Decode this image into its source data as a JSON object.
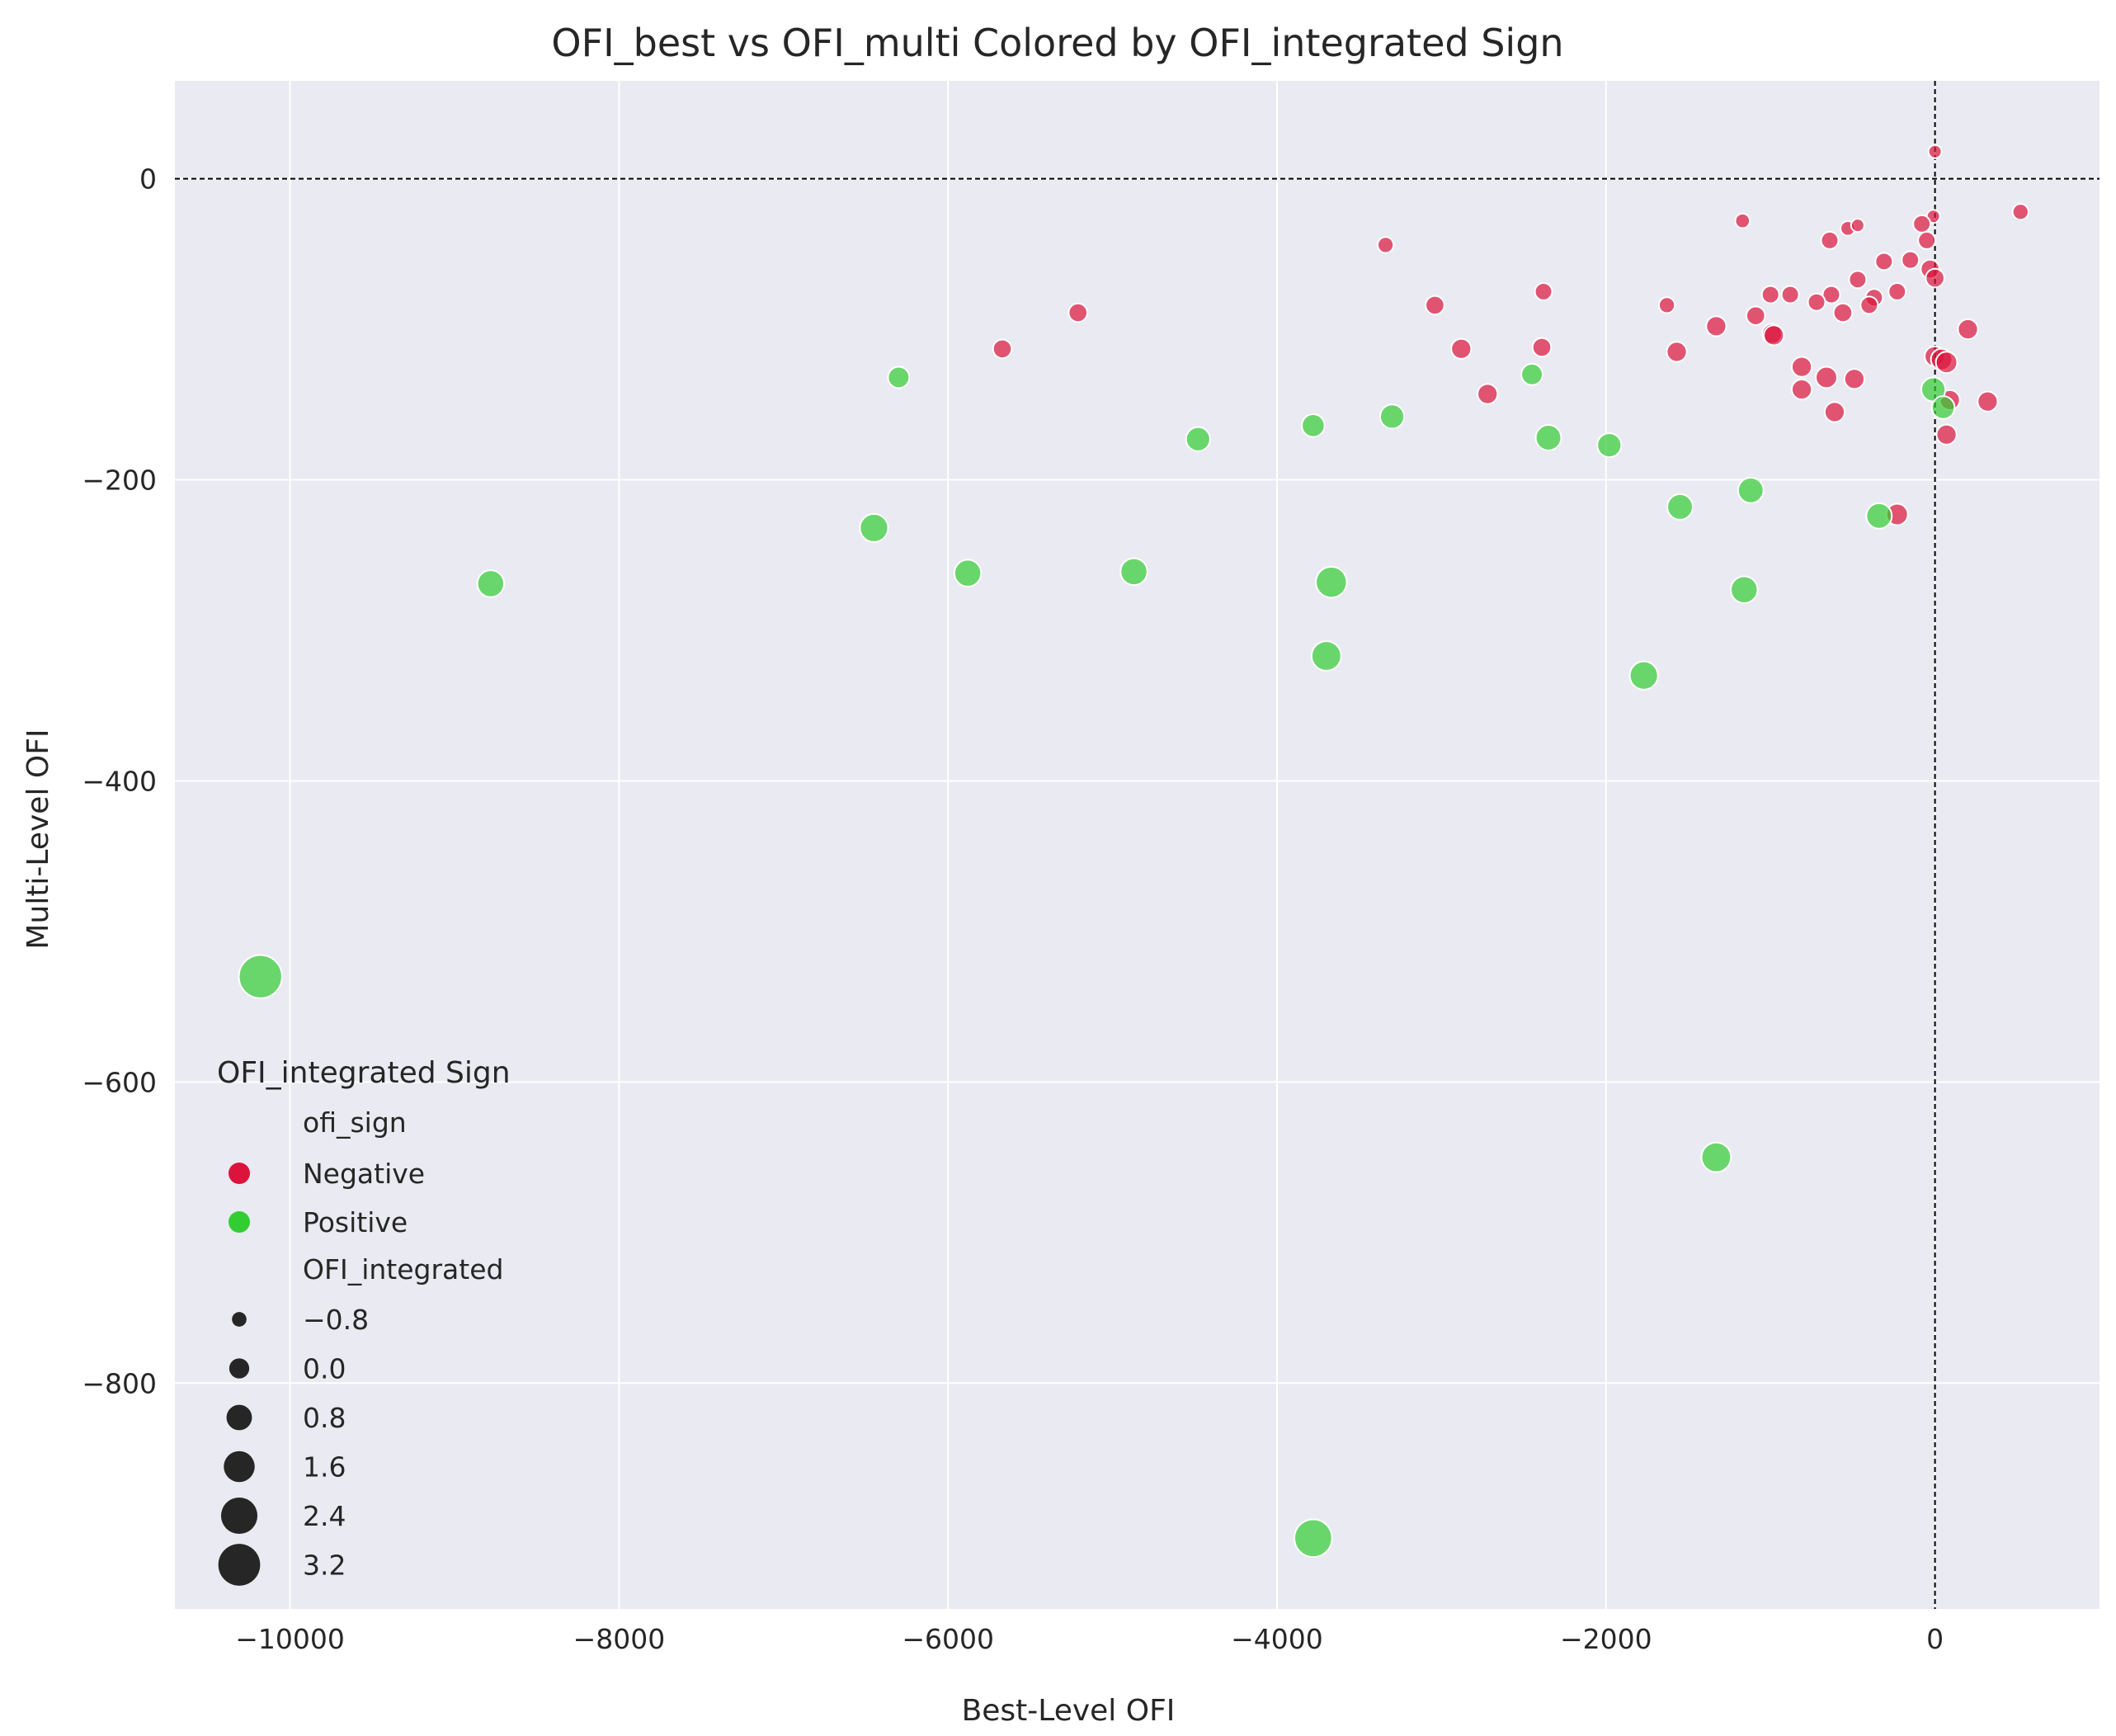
{
  "chart_data": {
    "type": "scatter",
    "title": "OFI_best vs OFI_multi Colored by OFI_integrated Sign",
    "xlabel": "Best-Level OFI",
    "ylabel": "Multi-Level OFI",
    "xlim": [
      -10700,
      1000
    ],
    "ylim": [
      -950,
      65
    ],
    "xticks": [
      -10000,
      -8000,
      -6000,
      -4000,
      -2000,
      0
    ],
    "yticks": [
      0,
      -200,
      -400,
      -600,
      -800
    ],
    "x_tick_labels": [
      "−10000",
      "−8000",
      "−6000",
      "−4000",
      "−2000",
      "0"
    ],
    "y_tick_labels": [
      "0",
      "−200",
      "−400",
      "−600",
      "−800"
    ],
    "grid": true,
    "reference_lines": {
      "x": 0,
      "y": 0,
      "style": "dashed",
      "color": "#000000"
    },
    "colors": {
      "Negative": "#dc143c",
      "Positive": "#32cd32",
      "background": "#eaeaf2",
      "grid": "#ffffff"
    },
    "legend": {
      "title": "OFI_integrated Sign",
      "placement": "lower-left",
      "hue_title": "ofi_sign",
      "hue_entries": [
        {
          "label": "Negative",
          "color": "#dc143c"
        },
        {
          "label": "Positive",
          "color": "#32cd32"
        }
      ],
      "size_title": "OFI_integrated",
      "size_entries": [
        {
          "label": "−0.8",
          "value": -0.8
        },
        {
          "label": "0.0",
          "value": 0.0
        },
        {
          "label": "0.8",
          "value": 0.8
        },
        {
          "label": "1.6",
          "value": 1.6
        },
        {
          "label": "2.4",
          "value": 2.4
        },
        {
          "label": "3.2",
          "value": 3.2
        }
      ]
    },
    "size_range": {
      "min_value": -1.0,
      "max_value": 3.6,
      "min_radius": 8,
      "max_radius": 27
    },
    "series": [
      {
        "name": "Negative",
        "points": [
          {
            "x": 0,
            "y": 18,
            "size": -1.2
          },
          {
            "x": 520,
            "y": -22,
            "size": -0.6
          },
          {
            "x": -1170,
            "y": -28,
            "size": -0.8
          },
          {
            "x": -530,
            "y": -33,
            "size": -0.8
          },
          {
            "x": -470,
            "y": -31,
            "size": -1.0
          },
          {
            "x": -10,
            "y": -25,
            "size": -1.0
          },
          {
            "x": -80,
            "y": -30,
            "size": -0.4
          },
          {
            "x": -3340,
            "y": -44,
            "size": -0.6
          },
          {
            "x": -640,
            "y": -41,
            "size": -0.4
          },
          {
            "x": -50,
            "y": -41,
            "size": -0.4
          },
          {
            "x": -310,
            "y": -55,
            "size": -0.4
          },
          {
            "x": -150,
            "y": -54,
            "size": -0.4
          },
          {
            "x": -30,
            "y": -60,
            "size": -0.2
          },
          {
            "x": 0,
            "y": -66,
            "size": -0.2
          },
          {
            "x": -470,
            "y": -67,
            "size": -0.4
          },
          {
            "x": -2380,
            "y": -75,
            "size": -0.4
          },
          {
            "x": -1000,
            "y": -77,
            "size": -0.4
          },
          {
            "x": -880,
            "y": -77,
            "size": -0.4
          },
          {
            "x": -630,
            "y": -77,
            "size": -0.4
          },
          {
            "x": -370,
            "y": -79,
            "size": -0.4
          },
          {
            "x": -230,
            "y": -75,
            "size": -0.4
          },
          {
            "x": -1630,
            "y": -84,
            "size": -0.6
          },
          {
            "x": -3040,
            "y": -84,
            "size": -0.2
          },
          {
            "x": -720,
            "y": -82,
            "size": -0.4
          },
          {
            "x": -400,
            "y": -84,
            "size": -0.4
          },
          {
            "x": -5210,
            "y": -89,
            "size": -0.2
          },
          {
            "x": -1090,
            "y": -91,
            "size": -0.2
          },
          {
            "x": -560,
            "y": -89,
            "size": -0.2
          },
          {
            "x": -1330,
            "y": -98,
            "size": 0.0
          },
          {
            "x": -990,
            "y": -103,
            "size": 0.0
          },
          {
            "x": -980,
            "y": -104,
            "size": 0.0
          },
          {
            "x": 200,
            "y": -100,
            "size": 0.0
          },
          {
            "x": -5670,
            "y": -113,
            "size": -0.2
          },
          {
            "x": -2880,
            "y": -113,
            "size": 0.0
          },
          {
            "x": -2390,
            "y": -112,
            "size": -0.2
          },
          {
            "x": -1570,
            "y": -115,
            "size": 0.0
          },
          {
            "x": -2,
            "y": -118,
            "size": 0.0
          },
          {
            "x": 40,
            "y": -120,
            "size": 0.2
          },
          {
            "x": 70,
            "y": -122,
            "size": 0.2
          },
          {
            "x": -810,
            "y": -125,
            "size": 0.0
          },
          {
            "x": -660,
            "y": -132,
            "size": 0.2
          },
          {
            "x": -490,
            "y": -133,
            "size": 0.0
          },
          {
            "x": -810,
            "y": -140,
            "size": 0.0
          },
          {
            "x": -2720,
            "y": -143,
            "size": 0.0
          },
          {
            "x": 90,
            "y": -147,
            "size": 0.0
          },
          {
            "x": 320,
            "y": -148,
            "size": 0.0
          },
          {
            "x": -610,
            "y": -155,
            "size": 0.0
          },
          {
            "x": 70,
            "y": -170,
            "size": 0.0
          },
          {
            "x": -230,
            "y": -223,
            "size": 0.2
          }
        ]
      },
      {
        "name": "Positive",
        "points": [
          {
            "x": -6300,
            "y": -132,
            "size": 0.2
          },
          {
            "x": -2450,
            "y": -130,
            "size": 0.2
          },
          {
            "x": -10,
            "y": -140,
            "size": 0.6
          },
          {
            "x": 50,
            "y": -152,
            "size": 0.4
          },
          {
            "x": -3300,
            "y": -158,
            "size": 0.6
          },
          {
            "x": -3780,
            "y": -164,
            "size": 0.4
          },
          {
            "x": -4480,
            "y": -173,
            "size": 0.6
          },
          {
            "x": -2350,
            "y": -172,
            "size": 0.8
          },
          {
            "x": -1980,
            "y": -177,
            "size": 0.6
          },
          {
            "x": -1120,
            "y": -207,
            "size": 0.8
          },
          {
            "x": -1550,
            "y": -218,
            "size": 0.8
          },
          {
            "x": -340,
            "y": -224,
            "size": 0.8
          },
          {
            "x": -6450,
            "y": -232,
            "size": 1.2
          },
          {
            "x": -5880,
            "y": -262,
            "size": 1.0
          },
          {
            "x": -4870,
            "y": -261,
            "size": 1.0
          },
          {
            "x": -8780,
            "y": -269,
            "size": 1.0
          },
          {
            "x": -3670,
            "y": -268,
            "size": 1.6
          },
          {
            "x": -1160,
            "y": -273,
            "size": 1.0
          },
          {
            "x": -3700,
            "y": -317,
            "size": 1.4
          },
          {
            "x": -1770,
            "y": -330,
            "size": 1.2
          },
          {
            "x": -10180,
            "y": -530,
            "size": 3.4
          },
          {
            "x": -1330,
            "y": -650,
            "size": 1.4
          },
          {
            "x": -3780,
            "y": -903,
            "size": 2.6
          }
        ]
      }
    ]
  }
}
